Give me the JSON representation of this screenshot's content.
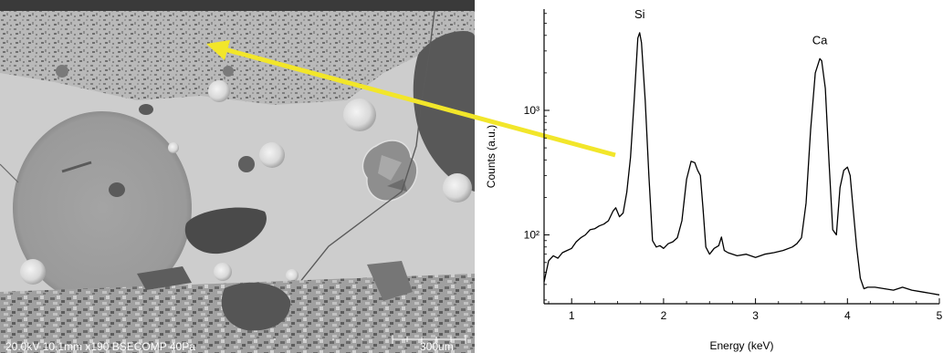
{
  "micrograph": {
    "caption": "20.0kV 10.1mm x190 BSECOMP 40Pa",
    "scale_label": "300um",
    "arrow_color": "#f2e62a"
  },
  "chart_data": {
    "type": "line",
    "title": "",
    "xlabel": "Energy (keV)",
    "ylabel": "Counts (a.u.)",
    "xlim": [
      0.7,
      5.0
    ],
    "ylim": [
      28,
      6500
    ],
    "yscale": "log",
    "xticks": [
      1,
      2,
      3,
      4,
      5
    ],
    "xtick_labels": [
      "1",
      "2",
      "3",
      "4",
      "5"
    ],
    "yticks": [
      100,
      1000
    ],
    "ytick_labels": [
      "10²",
      "10³"
    ],
    "grid": false,
    "line_color": "#000000",
    "x": [
      0.7,
      0.75,
      0.8,
      0.85,
      0.9,
      0.95,
      1.0,
      1.05,
      1.1,
      1.15,
      1.2,
      1.25,
      1.3,
      1.35,
      1.4,
      1.45,
      1.48,
      1.52,
      1.56,
      1.6,
      1.64,
      1.68,
      1.72,
      1.74,
      1.76,
      1.8,
      1.84,
      1.88,
      1.92,
      1.96,
      2.0,
      2.05,
      2.1,
      2.15,
      2.2,
      2.25,
      2.3,
      2.34,
      2.37,
      2.4,
      2.43,
      2.46,
      2.5,
      2.55,
      2.6,
      2.63,
      2.66,
      2.7,
      2.8,
      2.9,
      3.0,
      3.1,
      3.2,
      3.3,
      3.4,
      3.45,
      3.5,
      3.55,
      3.6,
      3.65,
      3.7,
      3.72,
      3.76,
      3.8,
      3.84,
      3.88,
      3.92,
      3.96,
      4.0,
      4.03,
      4.06,
      4.1,
      4.14,
      4.18,
      4.22,
      4.3,
      4.4,
      4.5,
      4.6,
      4.7,
      4.8,
      4.9,
      5.0
    ],
    "series": [
      {
        "values": [
          42,
          62,
          68,
          65,
          72,
          75,
          78,
          88,
          95,
          100,
          110,
          112,
          118,
          122,
          130,
          155,
          165,
          140,
          150,
          220,
          420,
          1200,
          3800,
          4200,
          3500,
          1200,
          300,
          90,
          80,
          82,
          78,
          85,
          88,
          95,
          130,
          280,
          390,
          380,
          330,
          300,
          160,
          80,
          70,
          78,
          82,
          96,
          75,
          72,
          68,
          70,
          66,
          70,
          72,
          75,
          80,
          85,
          95,
          180,
          700,
          2000,
          2600,
          2500,
          1500,
          380,
          110,
          100,
          240,
          330,
          350,
          300,
          170,
          80,
          45,
          37,
          38,
          38,
          37,
          36,
          38,
          36,
          35,
          34,
          33
        ]
      }
    ],
    "annotations": [
      {
        "text": "Si",
        "x": 1.74
      },
      {
        "text": "Ca",
        "x": 3.7
      }
    ]
  }
}
